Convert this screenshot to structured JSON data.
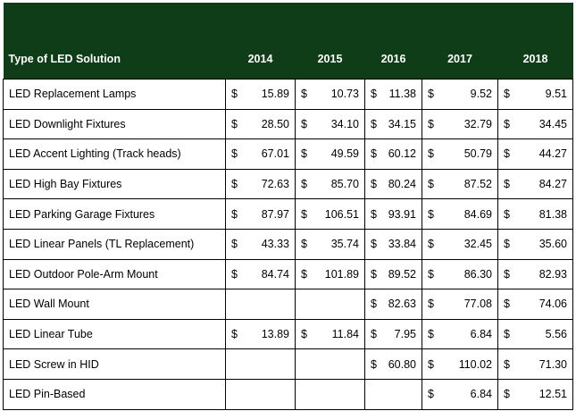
{
  "table": {
    "headers": [
      "Type of LED Solution",
      "2014",
      "2015",
      "2016",
      "2017",
      "2018"
    ],
    "rows": [
      {
        "name": "LED Replacement Lamps",
        "values": [
          {
            "c": "$",
            "v": "15.89"
          },
          {
            "c": "$",
            "v": "10.73"
          },
          {
            "c": "$",
            "v": "11.38"
          },
          {
            "c": "$",
            "v": "9.52"
          },
          {
            "c": "$",
            "v": "9.51"
          }
        ]
      },
      {
        "name": "LED Downlight Fixtures",
        "values": [
          {
            "c": "$",
            "v": "28.50"
          },
          {
            "c": "$",
            "v": "34.10"
          },
          {
            "c": "$",
            "v": "34.15"
          },
          {
            "c": "$",
            "v": "32.79"
          },
          {
            "c": "$",
            "v": "34.45"
          }
        ]
      },
      {
        "name": "LED Accent Lighting (Track heads)",
        "values": [
          {
            "c": "$",
            "v": "67.01"
          },
          {
            "c": "$",
            "v": "49.59"
          },
          {
            "c": "$",
            "v": "60.12"
          },
          {
            "c": "$",
            "v": "50.79"
          },
          {
            "c": "$",
            "v": "44.27"
          }
        ]
      },
      {
        "name": "LED High Bay Fixtures",
        "values": [
          {
            "c": "$",
            "v": "72.63"
          },
          {
            "c": "$",
            "v": "85.70"
          },
          {
            "c": "$",
            "v": "80.24"
          },
          {
            "c": "$",
            "v": "87.52"
          },
          {
            "c": "$",
            "v": "84.27"
          }
        ]
      },
      {
        "name": "LED Parking Garage Fixtures",
        "values": [
          {
            "c": "$",
            "v": "87.97"
          },
          {
            "c": "$",
            "v": "106.51"
          },
          {
            "c": "$",
            "v": "93.91"
          },
          {
            "c": "$",
            "v": "84.69"
          },
          {
            "c": "$",
            "v": "81.38"
          }
        ]
      },
      {
        "name": "LED Linear Panels (TL Replacement)",
        "values": [
          {
            "c": "$",
            "v": "43.33"
          },
          {
            "c": "$",
            "v": "35.74"
          },
          {
            "c": "$",
            "v": "33.84"
          },
          {
            "c": "$",
            "v": "32.45"
          },
          {
            "c": "$",
            "v": "35.60"
          }
        ]
      },
      {
        "name": "LED Outdoor Pole-Arm Mount",
        "values": [
          {
            "c": "$",
            "v": "84.74"
          },
          {
            "c": "$",
            "v": "101.89"
          },
          {
            "c": "$",
            "v": "89.52"
          },
          {
            "c": "$",
            "v": "86.30"
          },
          {
            "c": "$",
            "v": "82.93"
          }
        ]
      },
      {
        "name": "LED Wall Mount",
        "values": [
          {
            "c": "",
            "v": ""
          },
          {
            "c": "",
            "v": ""
          },
          {
            "c": "$",
            "v": "82.63"
          },
          {
            "c": "$",
            "v": "77.08"
          },
          {
            "c": "$",
            "v": "74.06"
          }
        ]
      },
      {
        "name": "LED Linear Tube",
        "values": [
          {
            "c": "$",
            "v": "13.89"
          },
          {
            "c": "$",
            "v": "11.84"
          },
          {
            "c": "$",
            "v": "7.95"
          },
          {
            "c": "$",
            "v": "6.84"
          },
          {
            "c": "$",
            "v": "5.56"
          }
        ]
      },
      {
        "name": "LED Screw in HID",
        "values": [
          {
            "c": "",
            "v": ""
          },
          {
            "c": "",
            "v": ""
          },
          {
            "c": "$",
            "v": "60.80"
          },
          {
            "c": "$",
            "v": "110.02"
          },
          {
            "c": "$",
            "v": "71.30"
          }
        ]
      },
      {
        "name": "LED Pin-Based",
        "values": [
          {
            "c": "",
            "v": ""
          },
          {
            "c": "",
            "v": ""
          },
          {
            "c": "",
            "v": ""
          },
          {
            "c": "$",
            "v": "6.84"
          },
          {
            "c": "$",
            "v": "12.51"
          }
        ]
      }
    ]
  },
  "colors": {
    "header_bg": "#0f3d17",
    "header_text": "#ffffff",
    "border": "#000000"
  }
}
